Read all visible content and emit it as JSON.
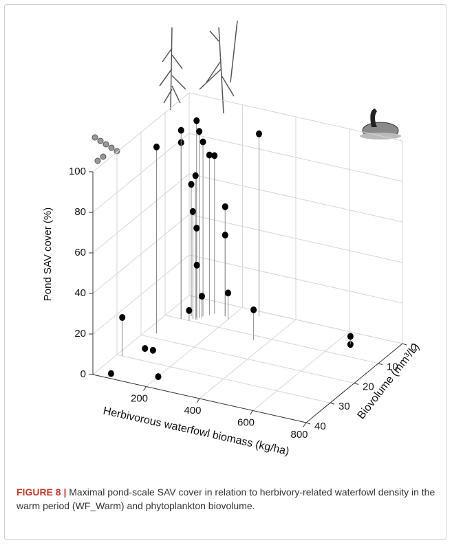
{
  "chart_data": {
    "type": "scatter3d",
    "xlabel": "Herbivorous waterfowl biomass (kg/ha)",
    "ylabel": "Biovolume (mm³/L)",
    "zlabel": "Pond SAV cover (%)",
    "xlim": [
      0,
      800
    ],
    "xticks": [
      200,
      400,
      600,
      800
    ],
    "ylim": [
      40,
      0
    ],
    "yticks": [
      0,
      10,
      20,
      30,
      40
    ],
    "zlim": [
      0,
      100
    ],
    "zticks": [
      0,
      20,
      40,
      60,
      80,
      100
    ],
    "grid": true,
    "color": "#000000",
    "stem_color": "#8c8c8c",
    "x": [
      20,
      50,
      60,
      90,
      200,
      650,
      650,
      350,
      100,
      110,
      115,
      130,
      105,
      80,
      95,
      100,
      110,
      120,
      40,
      280,
      180,
      180,
      200,
      140,
      60,
      60,
      90
    ],
    "y": [
      30,
      38,
      25,
      25,
      35,
      5,
      5,
      12,
      8,
      8,
      7,
      6,
      9,
      8,
      9,
      8,
      9,
      8,
      18,
      2,
      5,
      5,
      6,
      5,
      10,
      10,
      10
    ],
    "z": [
      19,
      0,
      0,
      0,
      0,
      0,
      4,
      15,
      97,
      92,
      86,
      79,
      71,
      65,
      53,
      44,
      27,
      11,
      92,
      90,
      54,
      40,
      13,
      78,
      87,
      93,
      5
    ]
  },
  "caption": {
    "label": "FIGURE 8 |",
    "text": "Maximal pond-scale SAV cover in relation to herbivory-related waterfowl density in the warm period (WF_Warm) and phytoplankton biovolume."
  }
}
